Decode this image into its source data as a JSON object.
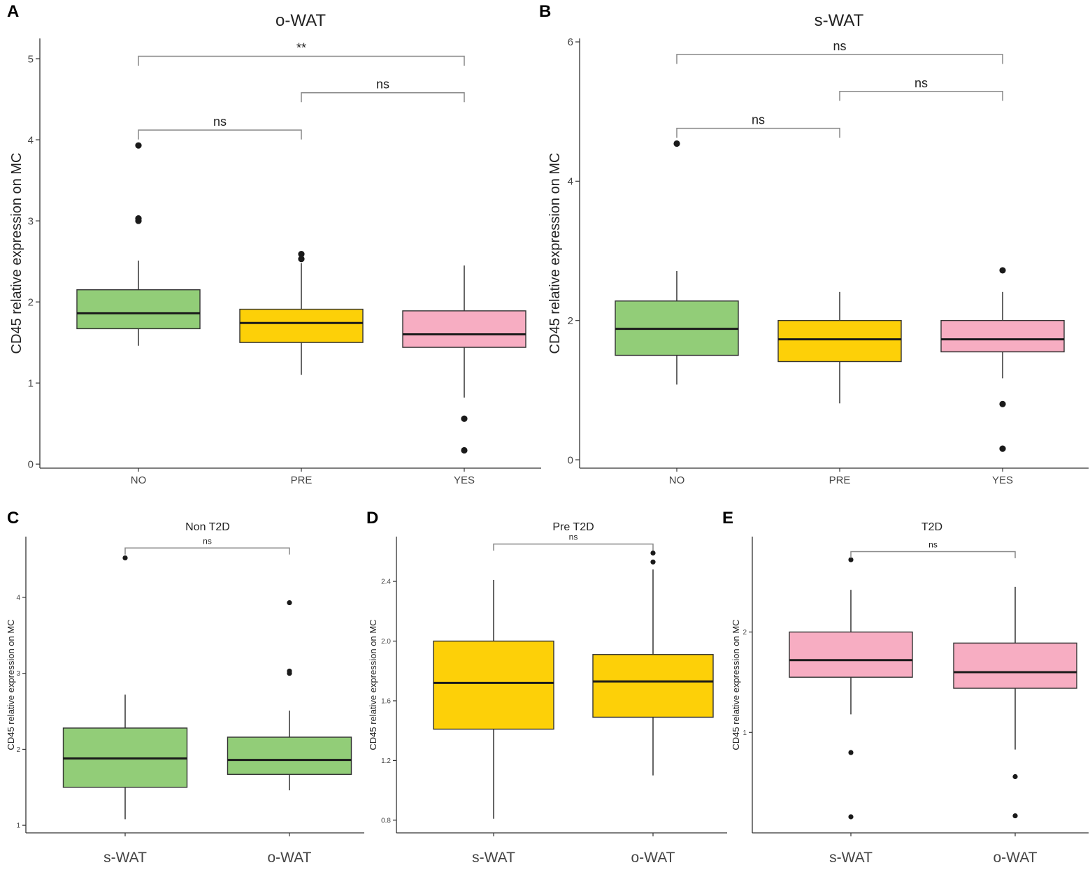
{
  "figure": {
    "colors": {
      "NO": "#92cd78",
      "PRE": "#fdd008",
      "YES": "#f7adc2",
      "line": "#333333",
      "bracket": "#888888",
      "outlier": "#1a1a1a"
    }
  },
  "chart_data": [
    {
      "panel": "A",
      "type": "box",
      "title": "o-WAT",
      "ylabel": "CD45 relative expression on MC",
      "xlabel": "",
      "ylim": [
        -0.05,
        5.25
      ],
      "yticks": [
        0,
        1,
        2,
        3,
        4,
        5
      ],
      "categories": [
        "NO",
        "PRE",
        "YES"
      ],
      "boxes": [
        {
          "category": "NO",
          "color_key": "NO",
          "whisker_low": 1.46,
          "q1": 1.67,
          "median": 1.86,
          "q3": 2.15,
          "whisker_high": 2.51,
          "outliers": [
            3.93,
            3.03,
            3.0
          ]
        },
        {
          "category": "PRE",
          "color_key": "PRE",
          "whisker_low": 1.1,
          "q1": 1.5,
          "median": 1.74,
          "q3": 1.91,
          "whisker_high": 2.48,
          "outliers": [
            2.59,
            2.53
          ]
        },
        {
          "category": "YES",
          "color_key": "YES",
          "whisker_low": 0.82,
          "q1": 1.44,
          "median": 1.6,
          "q3": 1.89,
          "whisker_high": 2.45,
          "outliers": [
            0.56,
            0.17
          ]
        }
      ],
      "comparisons": [
        {
          "from": 0,
          "to": 1,
          "y": 4.12,
          "label": "ns"
        },
        {
          "from": 1,
          "to": 2,
          "y": 4.58,
          "label": "ns"
        },
        {
          "from": 0,
          "to": 2,
          "y": 5.03,
          "label": "**"
        }
      ]
    },
    {
      "panel": "B",
      "type": "box",
      "title": "s-WAT",
      "ylabel": "CD45 relative expression on MC",
      "xlabel": "",
      "ylim": [
        -0.12,
        6.05
      ],
      "yticks": [
        0,
        2,
        4,
        6
      ],
      "categories": [
        "NO",
        "PRE",
        "YES"
      ],
      "boxes": [
        {
          "category": "NO",
          "color_key": "NO",
          "whisker_low": 1.08,
          "q1": 1.5,
          "median": 1.88,
          "q3": 2.28,
          "whisker_high": 2.71,
          "outliers": [
            4.54
          ]
        },
        {
          "category": "PRE",
          "color_key": "PRE",
          "whisker_low": 0.81,
          "q1": 1.41,
          "median": 1.73,
          "q3": 2.0,
          "whisker_high": 2.41,
          "outliers": []
        },
        {
          "category": "YES",
          "color_key": "YES",
          "whisker_low": 1.17,
          "q1": 1.55,
          "median": 1.73,
          "q3": 2.0,
          "whisker_high": 2.41,
          "outliers": [
            2.72,
            0.8,
            0.16
          ]
        }
      ],
      "comparisons": [
        {
          "from": 0,
          "to": 1,
          "y": 4.76,
          "label": "ns"
        },
        {
          "from": 1,
          "to": 2,
          "y": 5.29,
          "label": "ns"
        },
        {
          "from": 0,
          "to": 2,
          "y": 5.82,
          "label": "ns"
        }
      ]
    },
    {
      "panel": "C",
      "type": "box",
      "title": "Non T2D",
      "ylabel": "CD45 relative expression on MC",
      "xlabel": "",
      "ylim": [
        0.9,
        4.8
      ],
      "yticks": [
        1,
        2,
        3,
        4
      ],
      "categories": [
        "s-WAT",
        "o-WAT"
      ],
      "boxes": [
        {
          "category": "s-WAT",
          "color_key": "NO",
          "whisker_low": 1.08,
          "q1": 1.5,
          "median": 1.88,
          "q3": 2.28,
          "whisker_high": 2.72,
          "outliers": [
            4.52
          ]
        },
        {
          "category": "o-WAT",
          "color_key": "NO",
          "whisker_low": 1.46,
          "q1": 1.67,
          "median": 1.86,
          "q3": 2.16,
          "whisker_high": 2.51,
          "outliers": [
            3.93,
            3.03,
            3.0
          ]
        }
      ],
      "comparisons": [
        {
          "from": 0,
          "to": 1,
          "y": 4.65,
          "label": "ns"
        }
      ]
    },
    {
      "panel": "D",
      "type": "box",
      "title": "Pre T2D",
      "ylabel": "CD45 relative expression on MC",
      "xlabel": "",
      "ylim": [
        0.715,
        2.7
      ],
      "yticks": [
        0.8,
        1.2,
        1.6,
        2.0,
        2.4
      ],
      "categories": [
        "s-WAT",
        "o-WAT"
      ],
      "boxes": [
        {
          "category": "s-WAT",
          "color_key": "PRE",
          "whisker_low": 0.81,
          "q1": 1.41,
          "median": 1.72,
          "q3": 2.0,
          "whisker_high": 2.41,
          "outliers": []
        },
        {
          "category": "o-WAT",
          "color_key": "PRE",
          "whisker_low": 1.1,
          "q1": 1.49,
          "median": 1.73,
          "q3": 1.91,
          "whisker_high": 2.48,
          "outliers": [
            2.59,
            2.53
          ]
        }
      ],
      "comparisons": [
        {
          "from": 0,
          "to": 1,
          "y": 2.65,
          "label": "ns"
        }
      ]
    },
    {
      "panel": "E",
      "type": "box",
      "title": "T2D",
      "ylabel": "CD45 relative expression on MC",
      "xlabel": "",
      "ylim": [
        0.0,
        2.95
      ],
      "yticks": [
        1,
        2
      ],
      "categories": [
        "s-WAT",
        "o-WAT"
      ],
      "boxes": [
        {
          "category": "s-WAT",
          "color_key": "YES",
          "whisker_low": 1.18,
          "q1": 1.55,
          "median": 1.72,
          "q3": 2.0,
          "whisker_high": 2.42,
          "outliers": [
            2.72,
            0.8,
            0.16
          ]
        },
        {
          "category": "o-WAT",
          "color_key": "YES",
          "whisker_low": 0.83,
          "q1": 1.44,
          "median": 1.6,
          "q3": 1.89,
          "whisker_high": 2.45,
          "outliers": [
            0.56,
            0.17
          ]
        }
      ],
      "comparisons": [
        {
          "from": 0,
          "to": 1,
          "y": 2.8,
          "label": "ns"
        }
      ]
    }
  ]
}
